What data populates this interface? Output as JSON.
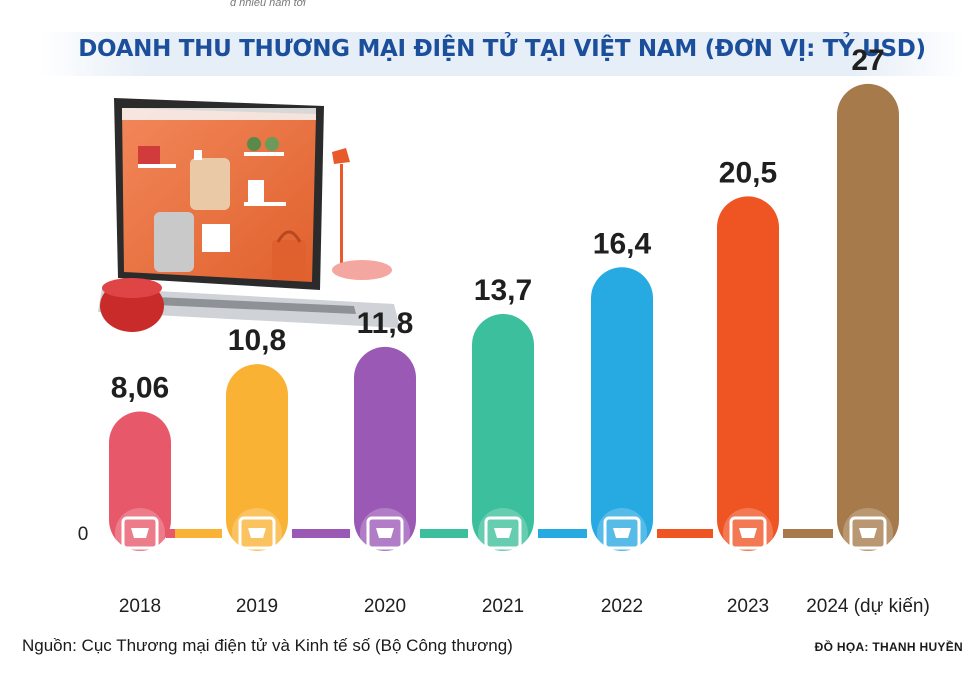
{
  "header": {
    "title": "DOANH THU THƯƠNG MẠI ĐIỆN TỬ TẠI VIỆT NAM (ĐƠN VỊ: TỶ USD)",
    "top_cutoff_text": "g nhiều năm tới"
  },
  "footer": {
    "source": "Nguồn: Cục Thương mại điện tử và Kinh tế số (Bộ Công thương)",
    "credit": "ĐỒ HỌA: THANH HUYỀN"
  },
  "chart_data": {
    "type": "bar",
    "title": "DOANH THU THƯƠNG MẠI ĐIỆN TỬ TẠI VIỆT NAM (ĐƠN VỊ: TỶ USD)",
    "categories": [
      "2018",
      "2019",
      "2020",
      "2021",
      "2022",
      "2023",
      "2024 (dự kiến)"
    ],
    "values": [
      8.06,
      10.8,
      11.8,
      13.7,
      16.4,
      20.5,
      27
    ],
    "value_labels": [
      "8,06",
      "10,8",
      "11,8",
      "13,7",
      "16,4",
      "20,5",
      "27"
    ],
    "colors": [
      "#e8586b",
      "#f9b233",
      "#9b59b6",
      "#3cbf9c",
      "#27aae1",
      "#ef5423",
      "#a67a4b"
    ],
    "icons": [
      "monitor-cart-icon",
      "basket-icon",
      "shopping-bag-icon",
      "growth-chart-icon",
      "tablet-icon",
      "cart-plus-icon",
      "laptop-cart-icon"
    ],
    "y_zero_label": "0",
    "ylim": [
      0,
      27
    ],
    "grid": false,
    "legend": "none"
  },
  "colors": {
    "title": "#1b4f9c",
    "connector_palette": [
      "#e8586b",
      "#f9b233",
      "#9b59b6",
      "#3cbf9c",
      "#27aae1",
      "#ef5423",
      "#a67a4b"
    ]
  }
}
